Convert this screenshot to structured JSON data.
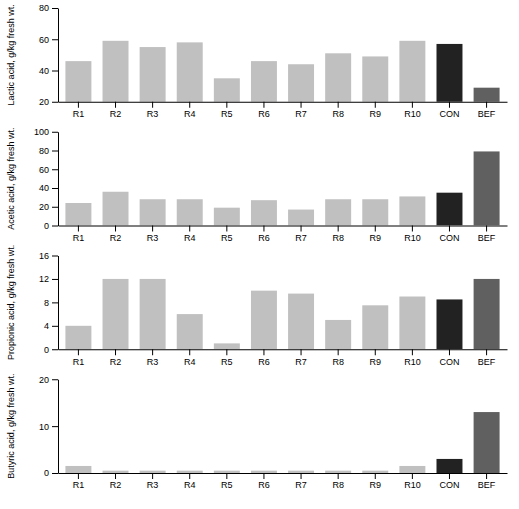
{
  "chart_data": [
    {
      "type": "bar",
      "categories": [
        "R1",
        "R2",
        "R3",
        "R4",
        "R5",
        "R6",
        "R7",
        "R8",
        "R9",
        "R10",
        "CON",
        "BEF"
      ],
      "values": [
        46,
        59,
        55,
        58,
        35,
        46,
        44,
        51,
        49,
        59,
        57,
        29
      ],
      "colors": [
        "#c0c0c0",
        "#c0c0c0",
        "#c0c0c0",
        "#c0c0c0",
        "#c0c0c0",
        "#c0c0c0",
        "#c0c0c0",
        "#c0c0c0",
        "#c0c0c0",
        "#c0c0c0",
        "#222222",
        "#606060"
      ],
      "ylabel": "Lactic acid, g/kg fresh wt.",
      "ylim": [
        20,
        80
      ],
      "yticks": [
        20,
        40,
        60,
        80
      ]
    },
    {
      "type": "bar",
      "categories": [
        "R1",
        "R2",
        "R3",
        "R4",
        "R5",
        "R6",
        "R7",
        "R8",
        "R9",
        "R10",
        "CON",
        "BEF"
      ],
      "values": [
        24,
        36,
        28,
        28,
        19,
        27,
        17,
        28,
        28,
        31,
        35,
        79
      ],
      "colors": [
        "#c0c0c0",
        "#c0c0c0",
        "#c0c0c0",
        "#c0c0c0",
        "#c0c0c0",
        "#c0c0c0",
        "#c0c0c0",
        "#c0c0c0",
        "#c0c0c0",
        "#c0c0c0",
        "#222222",
        "#606060"
      ],
      "ylabel": "Acetic acid, g/kg fresh wt.",
      "ylim": [
        0,
        100
      ],
      "yticks": [
        0,
        20,
        40,
        60,
        80,
        100
      ]
    },
    {
      "type": "bar",
      "categories": [
        "R1",
        "R2",
        "R3",
        "R4",
        "R5",
        "R6",
        "R7",
        "R8",
        "R9",
        "R10",
        "CON",
        "BEF"
      ],
      "values": [
        4,
        12,
        12,
        6,
        1,
        10,
        9.5,
        5,
        7.5,
        9,
        8.5,
        12
      ],
      "colors": [
        "#c0c0c0",
        "#c0c0c0",
        "#c0c0c0",
        "#c0c0c0",
        "#c0c0c0",
        "#c0c0c0",
        "#c0c0c0",
        "#c0c0c0",
        "#c0c0c0",
        "#c0c0c0",
        "#222222",
        "#606060"
      ],
      "ylabel": "Propionic acid, g/kg fresh wt.",
      "ylim": [
        0,
        16
      ],
      "yticks": [
        0,
        4,
        8,
        12,
        16
      ]
    },
    {
      "type": "bar",
      "categories": [
        "R1",
        "R2",
        "R3",
        "R4",
        "R5",
        "R6",
        "R7",
        "R8",
        "R9",
        "R10",
        "CON",
        "BEF"
      ],
      "values": [
        1.5,
        0.5,
        0.5,
        0.5,
        0.5,
        0.5,
        0.5,
        0.5,
        0.5,
        1.5,
        3,
        13
      ],
      "colors": [
        "#c0c0c0",
        "#c0c0c0",
        "#c0c0c0",
        "#c0c0c0",
        "#c0c0c0",
        "#c0c0c0",
        "#c0c0c0",
        "#c0c0c0",
        "#c0c0c0",
        "#c0c0c0",
        "#222222",
        "#606060"
      ],
      "ylabel": "Butyric acid, g/kg fresh wt.",
      "ylim": [
        0,
        20
      ],
      "yticks": [
        0,
        10,
        20
      ]
    }
  ]
}
